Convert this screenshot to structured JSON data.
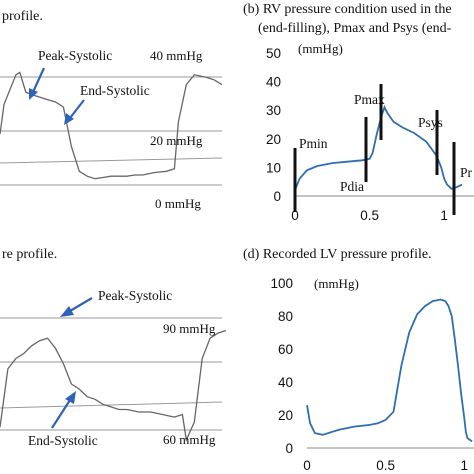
{
  "panels": {
    "a": {
      "caption": "profile.",
      "labels": [
        "Peak-Systolic",
        "End-Systolic",
        "40 mmHg",
        "20 mmHg",
        "0 mmHg"
      ]
    },
    "b": {
      "caption_line1": "(b) RV pressure condition used in the",
      "caption_line2": "(end-filling), Pmax and Psys (end-",
      "unit": "(mmHg)",
      "markers": [
        "Pmin",
        "Pmax",
        "Pdia",
        "Psys",
        "Pr"
      ]
    },
    "c": {
      "caption": "re profile.",
      "labels": [
        "Peak-Systolic",
        "End-Systolic",
        "90 mmHg",
        "60 mmHg"
      ]
    },
    "d": {
      "caption": "(d)  Recorded LV pressure profile.",
      "unit": "(mmHg)"
    }
  },
  "colors": {
    "curve": "#2e6fb0",
    "trace": "#666666",
    "arrow": "#2f63b7"
  },
  "chart_data": [
    {
      "type": "line",
      "panel": "b",
      "ylim": [
        0,
        50
      ],
      "xlim": [
        0,
        1.2
      ],
      "yticks": [
        0,
        10,
        20,
        30,
        40,
        50
      ],
      "xticks": [
        0,
        0.5,
        1
      ],
      "x": [
        0,
        0.03,
        0.08,
        0.15,
        0.25,
        0.35,
        0.45,
        0.5,
        0.52,
        0.55,
        0.58,
        0.6,
        0.62,
        0.66,
        0.72,
        0.8,
        0.88,
        0.95,
        0.98,
        1.0,
        1.02,
        1.05,
        1.08,
        1.12
      ],
      "y": [
        2,
        6,
        9,
        10.5,
        11.5,
        12,
        12.5,
        13,
        15,
        22,
        28,
        31,
        29,
        26,
        24,
        22,
        19,
        14,
        10,
        6,
        4,
        2.5,
        3,
        4
      ]
    },
    {
      "type": "line",
      "panel": "d",
      "ylim": [
        0,
        100
      ],
      "xlim": [
        0,
        1.1
      ],
      "yticks": [
        0,
        20,
        40,
        60,
        80,
        100
      ],
      "xticks": [
        0,
        0.5,
        1
      ],
      "x": [
        0,
        0.02,
        0.05,
        0.1,
        0.2,
        0.3,
        0.4,
        0.45,
        0.5,
        0.55,
        0.6,
        0.65,
        0.7,
        0.75,
        0.8,
        0.85,
        0.88,
        0.9,
        0.92,
        0.94,
        0.96,
        0.98,
        1.0,
        1.01,
        1.02,
        1.05
      ],
      "y": [
        26,
        15,
        9,
        8,
        11,
        13,
        14,
        15,
        17,
        22,
        50,
        70,
        81,
        86,
        89,
        90,
        89,
        86,
        80,
        66,
        50,
        33,
        18,
        10,
        6,
        4
      ]
    },
    {
      "type": "line",
      "panel": "a",
      "title": "",
      "yticks_text": [
        "40 mmHg",
        "20 mmHg",
        "0 mmHg"
      ],
      "ylim": [
        -5,
        50
      ],
      "x": [
        0,
        2,
        5,
        8,
        10,
        13,
        16,
        20,
        24,
        28,
        32,
        36,
        40,
        44,
        48,
        52,
        56,
        60,
        64,
        68,
        72,
        78,
        84,
        88,
        90,
        94,
        98,
        104,
        108,
        112
      ],
      "y": [
        20,
        32,
        38,
        44,
        45,
        37,
        36,
        35,
        34,
        33,
        31,
        15,
        5,
        3,
        2,
        2.5,
        3,
        3,
        3,
        3.5,
        3.5,
        4.5,
        5,
        6,
        25,
        40,
        44,
        43,
        42,
        40
      ]
    },
    {
      "type": "line",
      "panel": "c",
      "title": "",
      "yticks_text": [
        "90 mmHg",
        "60 mmHg"
      ],
      "ylim": [
        50,
        105
      ],
      "x": [
        0,
        4,
        8,
        12,
        16,
        20,
        24,
        28,
        32,
        36,
        40,
        44,
        48,
        52,
        56,
        60,
        64,
        70,
        76,
        82,
        88,
        92,
        94,
        98,
        102,
        106,
        110,
        114
      ],
      "y": [
        55,
        78,
        82,
        84,
        87,
        89,
        90,
        86,
        80,
        72,
        70,
        67,
        66,
        64,
        63,
        62,
        62,
        61,
        61,
        60,
        59,
        60,
        50,
        57,
        82,
        90,
        92,
        93
      ]
    }
  ]
}
